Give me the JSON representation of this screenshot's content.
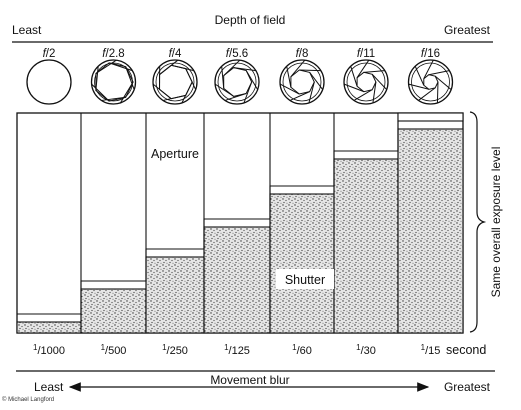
{
  "top_axis": {
    "left_label": "Least",
    "title": "Depth of field",
    "right_label": "Greatest"
  },
  "apertures": {
    "prefix": "f",
    "values": [
      "/2",
      "/2.8",
      "/4",
      "/5.6",
      "/8",
      "/11",
      "/16"
    ]
  },
  "chart": {
    "aperture_label": "Aperture",
    "shutter_label": "Shutter",
    "side_label": "Same overall exposure level"
  },
  "shutter_speeds": {
    "numerator": "1",
    "denominators": [
      "1000",
      "500",
      "250",
      "125",
      "60",
      "30",
      "15"
    ],
    "unit_label": "second"
  },
  "bottom_axis": {
    "left_label": "Least",
    "title": "Movement blur",
    "right_label": "Greatest"
  },
  "copyright": "© Michael Langford"
}
